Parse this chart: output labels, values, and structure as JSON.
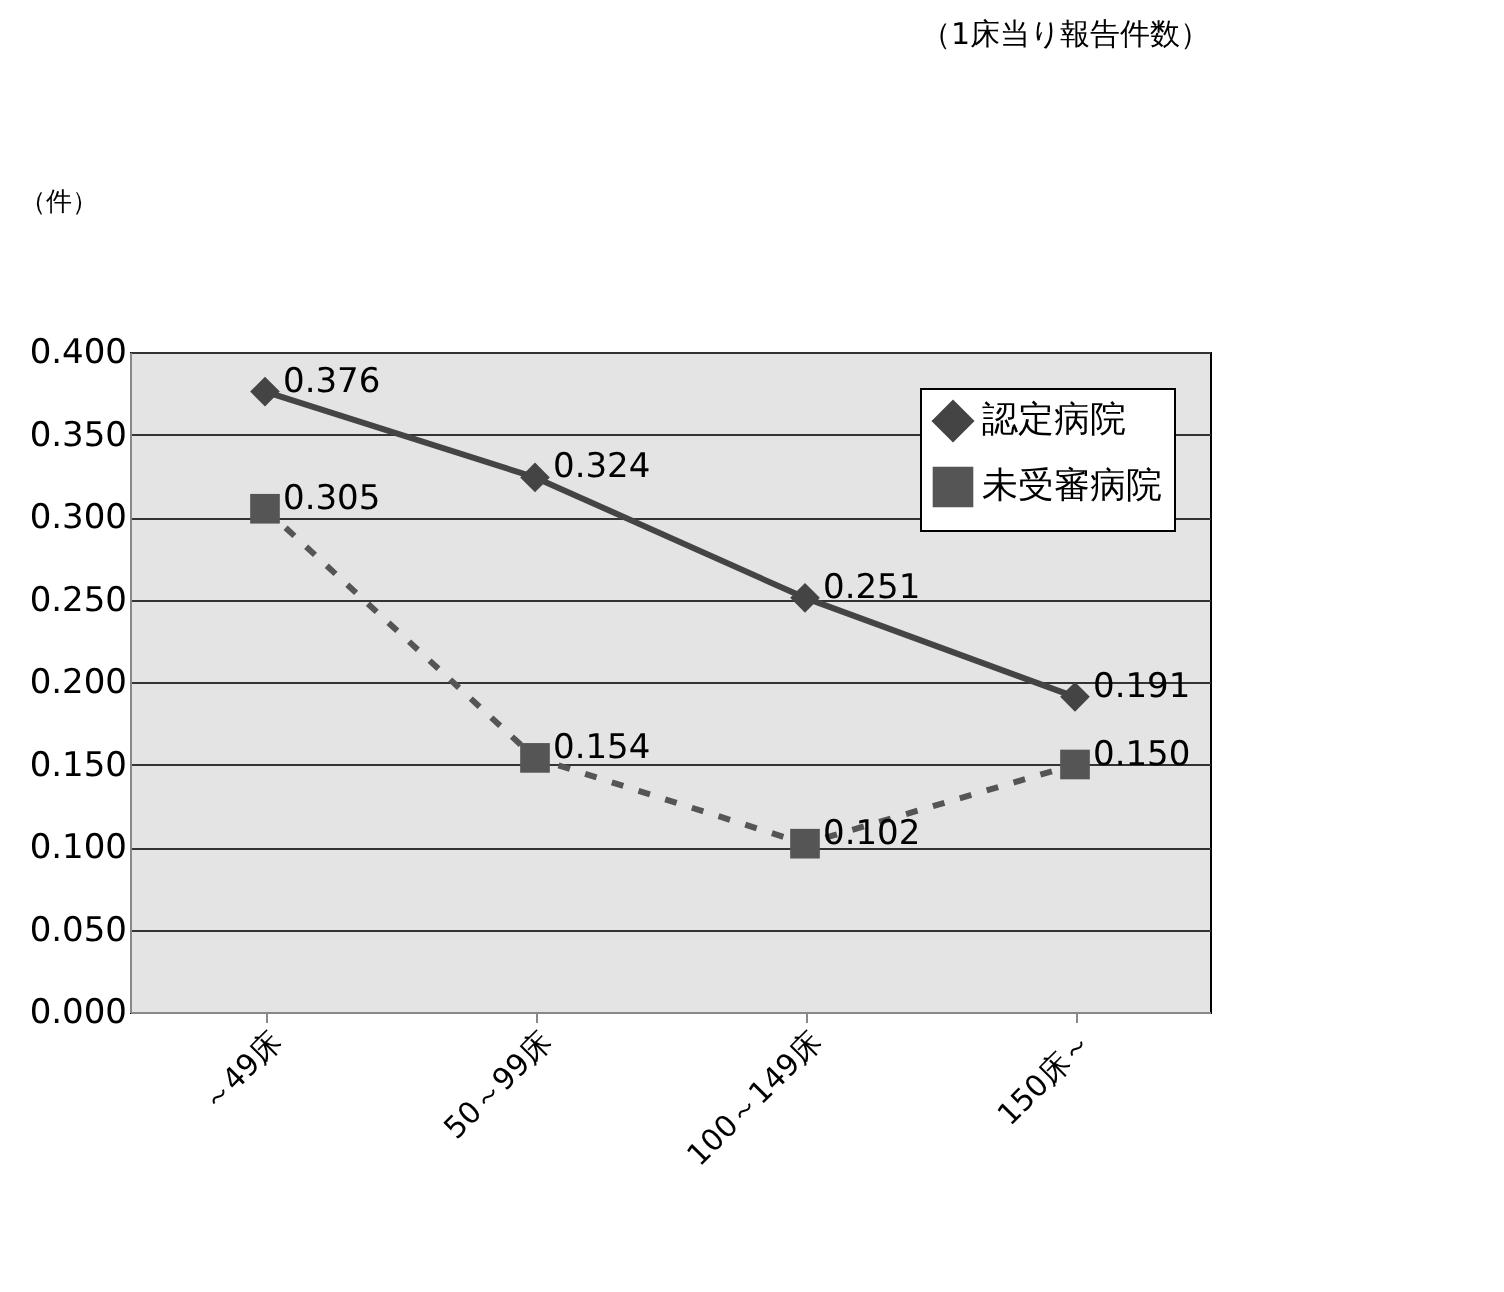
{
  "chart_data": {
    "type": "line",
    "title": "（1床当り報告件数）",
    "ylabel": "（件）",
    "categories": [
      "～49床",
      "50～99床",
      "100～149床",
      "150床～"
    ],
    "series": [
      {
        "name": "認定病院",
        "color": "#444444",
        "marker": "diamond",
        "line_style": "solid",
        "values": [
          0.376,
          0.324,
          0.251,
          0.191
        ],
        "value_labels": [
          "0.376",
          "0.324",
          "0.251",
          "0.191"
        ]
      },
      {
        "name": "未受審病院",
        "color": "#555555",
        "marker": "square",
        "line_style": "dashed",
        "values": [
          0.305,
          0.154,
          0.102,
          0.15
        ],
        "value_labels": [
          "0.305",
          "0.154",
          "0.102",
          "0.150"
        ]
      }
    ],
    "ylim": [
      0,
      0.4
    ],
    "yticks": [
      {
        "value": 0,
        "label": "0.000"
      },
      {
        "value": 0.05,
        "label": "0.050"
      },
      {
        "value": 0.1,
        "label": "0.100"
      },
      {
        "value": 0.15,
        "label": "0.150"
      },
      {
        "value": 0.2,
        "label": "0.200"
      },
      {
        "value": 0.25,
        "label": "0.250"
      },
      {
        "value": 0.3,
        "label": "0.300"
      },
      {
        "value": 0.35,
        "label": "0.350"
      },
      {
        "value": 0.4,
        "label": "0.400"
      }
    ],
    "grid": "y",
    "legend": "top right"
  }
}
